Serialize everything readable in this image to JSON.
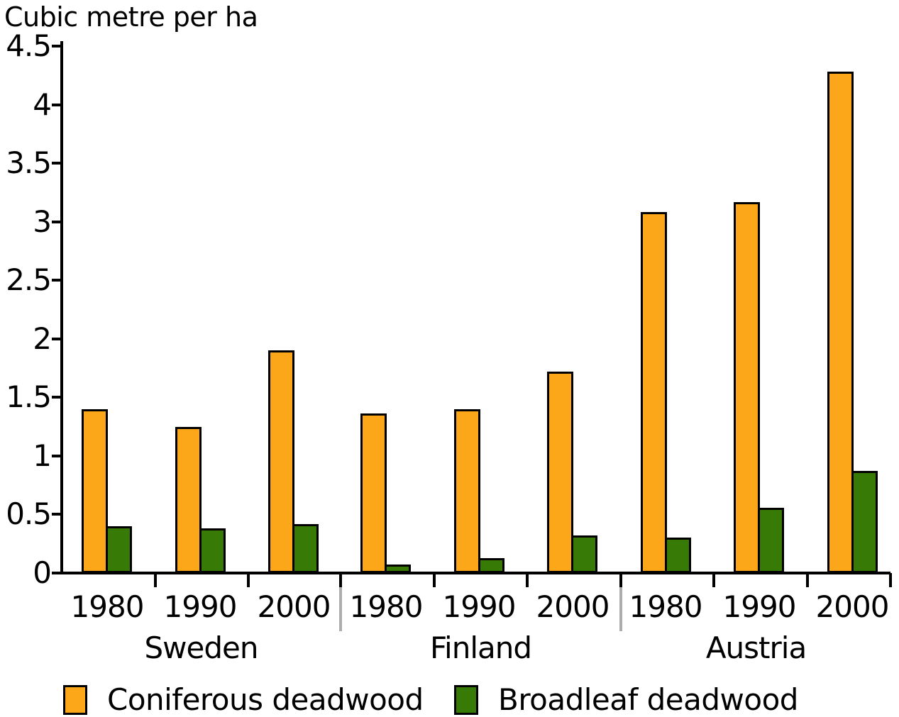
{
  "chart_data": {
    "type": "bar",
    "title": "Cubic metre per ha",
    "ylabel": "Cubic metre per ha",
    "xlabel": "",
    "ylim": [
      0,
      4.5
    ],
    "ytick_interval": 0.5,
    "ytick_labels": [
      "0",
      "0.5",
      "1",
      "1.5",
      "2",
      "2.5",
      "3",
      "3.5",
      "4",
      "4.5"
    ],
    "grid": false,
    "legend_position": "bottom",
    "countries": [
      "Sweden",
      "Finland",
      "Austria"
    ],
    "years": [
      "1980",
      "1990",
      "2000"
    ],
    "series": [
      {
        "name": "Coniferous deadwood",
        "color": "#FCA61A",
        "values": [
          [
            1.4,
            1.25,
            1.9
          ],
          [
            1.36,
            1.4,
            1.72
          ],
          [
            3.08,
            3.17,
            4.28
          ]
        ]
      },
      {
        "name": "Broadleaf deadwood",
        "color": "#377A05",
        "values": [
          [
            0.4,
            0.38,
            0.42
          ],
          [
            0.07,
            0.13,
            0.32
          ],
          [
            0.3,
            0.56,
            0.87
          ]
        ]
      }
    ],
    "colors": {
      "axis": "#000000",
      "bar_border": "#000000",
      "separator": "#ACACAC",
      "background": "#FFFFFF",
      "text": "#000000"
    }
  }
}
